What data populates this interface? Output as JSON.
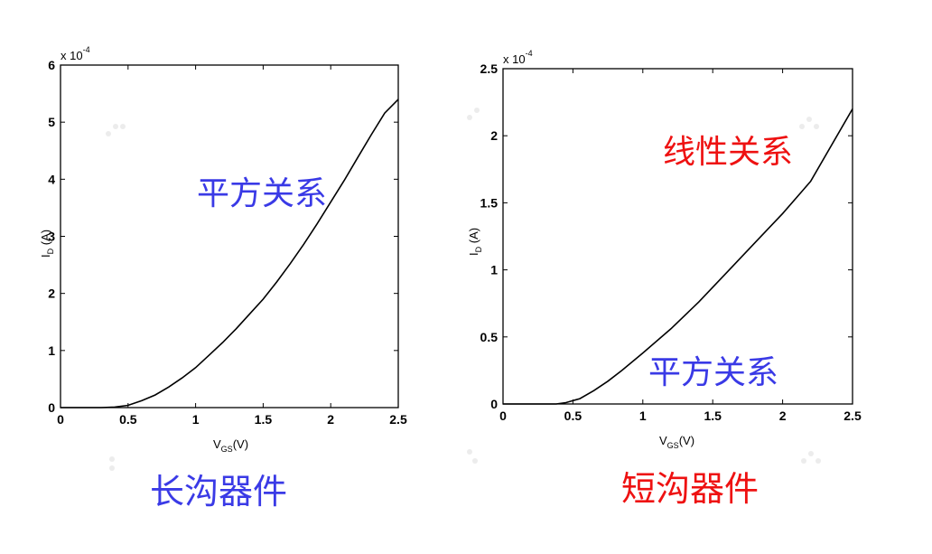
{
  "colors": {
    "blue": "#3a3ae6",
    "red": "#ee1111",
    "curve": "#000000"
  },
  "panels": [
    {
      "caption": "长沟器件",
      "caption_color": "#3a3ae6",
      "annotations": [
        {
          "text": "平方关系",
          "color": "#3a3ae6"
        }
      ]
    },
    {
      "caption": "短沟器件",
      "caption_color": "#ee1111",
      "annotations": [
        {
          "text": "线性关系",
          "color": "#ee1111"
        },
        {
          "text": "平方关系",
          "color": "#3a3ae6"
        }
      ]
    }
  ],
  "chart_data": [
    {
      "type": "line",
      "xlabel": "V_GS(V)",
      "ylabel": "I_D (A)",
      "y_exponent_label": "x 10",
      "y_exponent": "-4",
      "xlim": [
        0,
        2.5
      ],
      "ylim": [
        0,
        6
      ],
      "x_ticks": [
        "0",
        "0.5",
        "1",
        "1.5",
        "2",
        "2.5"
      ],
      "y_ticks": [
        "0",
        "1",
        "2",
        "3",
        "4",
        "5",
        "6"
      ],
      "x_tick_values": [
        0,
        0.5,
        1,
        1.5,
        2,
        2.5
      ],
      "y_tick_values": [
        0,
        1,
        2,
        3,
        4,
        5,
        6
      ],
      "series": [
        {
          "x": [
            0,
            0.3,
            0.4,
            0.5,
            0.6,
            0.7,
            0.8,
            0.9,
            1.0,
            1.1,
            1.2,
            1.3,
            1.4,
            1.5,
            1.6,
            1.7,
            1.8,
            1.9,
            2.0,
            2.1,
            2.2,
            2.3,
            2.4,
            2.5
          ],
          "y": [
            0,
            0,
            0.01,
            0.04,
            0.12,
            0.22,
            0.36,
            0.52,
            0.7,
            0.92,
            1.14,
            1.38,
            1.64,
            1.9,
            2.2,
            2.52,
            2.86,
            3.22,
            3.6,
            3.98,
            4.38,
            4.78,
            5.16,
            5.4
          ]
        }
      ]
    },
    {
      "type": "line",
      "xlabel": "V_GS(V)",
      "ylabel": "I_D (A)",
      "y_exponent_label": "x 10",
      "y_exponent": "-4",
      "xlim": [
        0,
        2.5
      ],
      "ylim": [
        0,
        2.5
      ],
      "x_ticks": [
        "0",
        "0.5",
        "1",
        "1.5",
        "2",
        "2.5"
      ],
      "y_ticks": [
        "0",
        "0.5",
        "1",
        "1.5",
        "2",
        "2.5"
      ],
      "x_tick_values": [
        0,
        0.5,
        1,
        1.5,
        2,
        2.5
      ],
      "y_tick_values": [
        0,
        0.5,
        1,
        1.5,
        2,
        2.5
      ],
      "series": [
        {
          "x": [
            0,
            0.38,
            0.45,
            0.55,
            0.65,
            0.75,
            0.85,
            1.0,
            1.2,
            1.4,
            1.6,
            1.8,
            2.0,
            2.2,
            2.5
          ],
          "y": [
            0,
            0,
            0.01,
            0.04,
            0.1,
            0.17,
            0.25,
            0.38,
            0.56,
            0.76,
            0.98,
            1.2,
            1.42,
            1.66,
            2.2
          ]
        }
      ]
    }
  ]
}
